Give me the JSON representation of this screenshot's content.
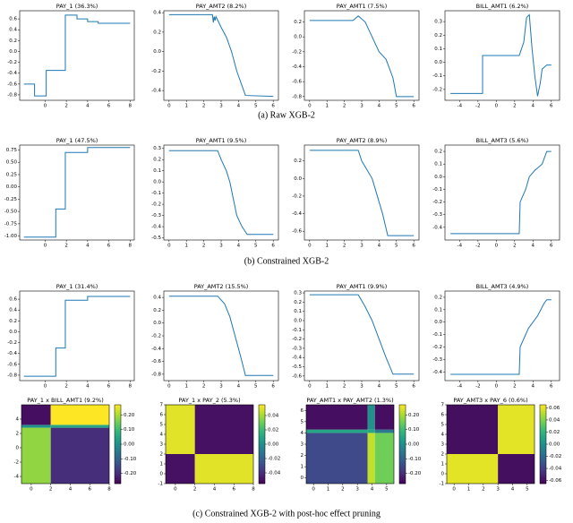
{
  "chart_data": [
    {
      "type": "line",
      "title": "PAY_1 (36.3%)",
      "x": [
        -2,
        -1,
        -1,
        0.1,
        0.1,
        1.9,
        1.9,
        3,
        3,
        4,
        4,
        5,
        5,
        8
      ],
      "values": [
        -0.6,
        -0.6,
        -0.82,
        -0.82,
        -0.35,
        -0.35,
        0.67,
        0.67,
        0.6,
        0.6,
        0.55,
        0.55,
        0.52,
        0.52
      ],
      "xlim": [
        -2.4,
        8.4
      ],
      "ylim": [
        -0.9,
        0.75
      ],
      "xticks": [
        0,
        2,
        4,
        6,
        8
      ],
      "yticks": [
        -0.8,
        -0.6,
        -0.4,
        -0.2,
        {
          "value": 0,
          "label": "0.0"
        },
        0.2,
        0.4,
        0.6
      ],
      "color": "#1f77b4"
    },
    {
      "type": "line",
      "title": "PAY_AMT2 (8.2%)",
      "x": [
        0,
        2.5,
        2.55,
        2.6,
        2.65,
        2.7,
        3,
        3.3,
        3.6,
        3.9,
        4.2,
        4.4,
        6
      ],
      "values": [
        0.38,
        0.38,
        0.3,
        0.36,
        0.32,
        0.36,
        0.25,
        0.15,
        0,
        -0.2,
        -0.35,
        -0.45,
        -0.46
      ],
      "xlim": [
        -0.3,
        6.3
      ],
      "ylim": [
        -0.5,
        0.42
      ],
      "xticks": [
        0,
        1,
        2,
        3,
        4,
        5,
        6
      ],
      "yticks": [
        -0.4,
        -0.2,
        {
          "value": 0,
          "label": "0.0"
        },
        0.2,
        0.4
      ],
      "color": "#1f77b4"
    },
    {
      "type": "line",
      "title": "PAY_AMT1 (7.5%)",
      "x": [
        0,
        2.5,
        2.8,
        3.2,
        3.6,
        4,
        4.4,
        4.8,
        5,
        6
      ],
      "values": [
        0.22,
        0.22,
        0.28,
        0.2,
        0,
        -0.2,
        -0.3,
        -0.55,
        -0.8,
        -0.8
      ],
      "xlim": [
        -0.3,
        6.3
      ],
      "ylim": [
        -0.85,
        0.35
      ],
      "xticks": [
        0,
        1,
        2,
        3,
        4,
        5,
        6
      ],
      "yticks": [
        -0.8,
        -0.6,
        -0.4,
        -0.2,
        {
          "value": 0,
          "label": "0.0"
        },
        0.2
      ],
      "color": "#1f77b4"
    },
    {
      "type": "line",
      "title": "BILL_AMT1 (6.2%)",
      "x": [
        -5,
        -1.5,
        -1.5,
        2.5,
        3,
        3.3,
        3.6,
        3.9,
        4.2,
        4.5,
        4.8,
        5,
        5.5,
        6
      ],
      "values": [
        -0.23,
        -0.23,
        0.05,
        0.05,
        0.15,
        0.33,
        0.35,
        0.1,
        -0.1,
        -0.25,
        -0.15,
        -0.05,
        -0.02,
        -0.02
      ],
      "xlim": [
        -5.6,
        6.9
      ],
      "ylim": [
        -0.28,
        0.38
      ],
      "xticks": [
        -4,
        -2,
        0,
        2,
        4,
        6
      ],
      "yticks": [
        -0.2,
        -0.1,
        {
          "value": 0,
          "label": "0.0"
        },
        0.1,
        0.2,
        0.3
      ],
      "color": "#1f77b4"
    },
    {
      "type": "line",
      "title": "PAY_1 (47.5%)",
      "x": [
        -2,
        1,
        1,
        1.9,
        1.9,
        4,
        4,
        8
      ],
      "values": [
        -1.02,
        -1.02,
        -0.45,
        -0.45,
        0.7,
        0.7,
        0.8,
        0.8
      ],
      "xlim": [
        -2.4,
        8.4
      ],
      "ylim": [
        -1.08,
        0.85
      ],
      "xticks": [
        0,
        2,
        4,
        6,
        8
      ],
      "yticks": [
        {
          "value": -1,
          "label": "-1.00"
        },
        -0.75,
        {
          "value": -0.5,
          "label": "-0.50"
        },
        -0.25,
        {
          "value": 0,
          "label": "0.00"
        },
        0.25,
        {
          "value": 0.5,
          "label": "0.50"
        },
        0.75
      ],
      "color": "#1f77b4"
    },
    {
      "type": "line",
      "title": "PAY_AMT1 (9.5%)",
      "x": [
        0,
        2.8,
        3,
        3.3,
        3.5,
        3.7,
        3.9,
        4.2,
        4.5,
        6
      ],
      "values": [
        0.28,
        0.28,
        0.2,
        0.1,
        0,
        -0.15,
        -0.3,
        -0.4,
        -0.47,
        -0.47
      ],
      "xlim": [
        -0.3,
        6.3
      ],
      "ylim": [
        -0.52,
        0.33
      ],
      "xticks": [
        0,
        1,
        2,
        3,
        4,
        5,
        6
      ],
      "yticks": [
        -0.5,
        -0.4,
        -0.3,
        -0.2,
        -0.1,
        {
          "value": 0,
          "label": "0.0"
        },
        0.1,
        0.2,
        0.3
      ],
      "color": "#1f77b4"
    },
    {
      "type": "line",
      "title": "PAY_AMT2 (8.9%)",
      "x": [
        0,
        2.8,
        3,
        3.3,
        3.6,
        3.9,
        4.2,
        4.5,
        6
      ],
      "values": [
        0.32,
        0.32,
        0.2,
        0.1,
        0,
        -0.2,
        -0.4,
        -0.65,
        -0.65
      ],
      "xlim": [
        -0.3,
        6.3
      ],
      "ylim": [
        -0.7,
        0.38
      ],
      "xticks": [
        0,
        1,
        2,
        3,
        4,
        5,
        6
      ],
      "yticks": [
        -0.6,
        -0.4,
        -0.2,
        {
          "value": 0,
          "label": "0.0"
        },
        0.2
      ],
      "color": "#1f77b4"
    },
    {
      "type": "line",
      "title": "BILL_AMT3 (5.6%)",
      "x": [
        -5,
        2.5,
        2.6,
        3.2,
        3.6,
        4.2,
        5,
        5.5,
        6
      ],
      "values": [
        -0.45,
        -0.45,
        -0.2,
        -0.1,
        0,
        0.05,
        0.1,
        0.2,
        0.2
      ],
      "xlim": [
        -5.6,
        6.9
      ],
      "ylim": [
        -0.5,
        0.25
      ],
      "xticks": [
        -4,
        -2,
        0,
        2,
        4,
        6
      ],
      "yticks": [
        -0.4,
        -0.3,
        -0.2,
        -0.1,
        {
          "value": 0,
          "label": "0.0"
        },
        0.1,
        0.2
      ],
      "color": "#1f77b4"
    },
    {
      "type": "line",
      "title": "PAY_1 (31.4%)",
      "x": [
        -2,
        1,
        1,
        1.9,
        1.9,
        4,
        4,
        8
      ],
      "values": [
        -0.82,
        -0.82,
        -0.3,
        -0.3,
        0.58,
        0.58,
        0.65,
        0.65
      ],
      "xlim": [
        -2.4,
        8.4
      ],
      "ylim": [
        -0.9,
        0.75
      ],
      "xticks": [
        0,
        2,
        4,
        6,
        8
      ],
      "yticks": [
        -0.8,
        -0.6,
        -0.4,
        -0.2,
        {
          "value": 0,
          "label": "0.0"
        },
        0.2,
        0.4,
        0.6
      ],
      "color": "#1f77b4"
    },
    {
      "type": "line",
      "title": "PAY_AMT2 (15.5%)",
      "x": [
        0,
        2.8,
        3.2,
        3.5,
        3.8,
        4.1,
        4.4,
        6
      ],
      "values": [
        0.42,
        0.42,
        0.3,
        0.1,
        -0.2,
        -0.5,
        -0.82,
        -0.82
      ],
      "xlim": [
        -0.3,
        6.3
      ],
      "ylim": [
        -0.9,
        0.5
      ],
      "xticks": [
        0,
        1,
        2,
        3,
        4,
        5,
        6
      ],
      "yticks": [
        -0.8,
        -0.6,
        -0.4,
        -0.2,
        {
          "value": 0,
          "label": "0.0"
        },
        0.2,
        0.4
      ],
      "color": "#1f77b4"
    },
    {
      "type": "line",
      "title": "PAY_AMT1 (9.9%)",
      "x": [
        0,
        2.8,
        3.2,
        3.6,
        4,
        4.4,
        4.8,
        6
      ],
      "values": [
        0.28,
        0.28,
        0.15,
        0,
        -0.2,
        -0.4,
        -0.58,
        -0.58
      ],
      "xlim": [
        -0.3,
        6.3
      ],
      "ylim": [
        -0.65,
        0.32
      ],
      "xticks": [
        0,
        1,
        2,
        3,
        4,
        5,
        6
      ],
      "yticks": [
        -0.6,
        -0.5,
        -0.4,
        -0.3,
        -0.2,
        -0.1,
        {
          "value": 0,
          "label": "0.0"
        },
        0.1,
        0.2,
        0.3
      ],
      "color": "#1f77b4"
    },
    {
      "type": "line",
      "title": "BILL_AMT3 (4.9%)",
      "x": [
        -5,
        2.5,
        2.6,
        3.5,
        4.5,
        5.2,
        5.5,
        6
      ],
      "values": [
        -0.42,
        -0.42,
        -0.2,
        -0.05,
        0.05,
        0.15,
        0.18,
        0.18
      ],
      "xlim": [
        -5.6,
        6.9
      ],
      "ylim": [
        -0.47,
        0.25
      ],
      "xticks": [
        -4,
        -2,
        0,
        2,
        4,
        6
      ],
      "yticks": [
        -0.4,
        -0.3,
        -0.2,
        -0.1,
        {
          "value": 0,
          "label": "0.0"
        },
        0.1,
        0.2
      ],
      "color": "#1f77b4"
    },
    {
      "type": "heatmap",
      "title": "PAY_1 x BILL_AMT1 (9.2%)",
      "xedges": [
        -1,
        2,
        8
      ],
      "yedges": [
        -5,
        2.8,
        3.2,
        6
      ],
      "z": [
        [
          0.18,
          -0.2
        ],
        [
          0,
          0.05
        ],
        [
          -0.25,
          0.27
        ]
      ],
      "xlim": [
        -1,
        8
      ],
      "ylim": [
        -5,
        6
      ],
      "xticks": [
        0,
        2,
        4,
        6,
        8
      ],
      "yticks": [
        -4,
        -2,
        0,
        2,
        4
      ],
      "clim": [
        -0.27,
        0.27
      ],
      "cticks": [
        {
          "value": -0.2,
          "label": "-0.20"
        },
        {
          "value": -0.1,
          "label": "-0.10"
        },
        {
          "value": 0,
          "label": "0.00"
        },
        {
          "value": 0.1,
          "label": "0.10"
        },
        {
          "value": 0.2,
          "label": "0.20"
        }
      ]
    },
    {
      "type": "heatmap",
      "title": "PAY_1 x PAY_2 (5.3%)",
      "xedges": [
        -1,
        2,
        8
      ],
      "yedges": [
        -1,
        2,
        7
      ],
      "z": [
        [
          -0.05,
          0.05
        ],
        [
          0.05,
          -0.05
        ]
      ],
      "xlim": [
        -1,
        8
      ],
      "ylim": [
        -1,
        7
      ],
      "xticks": [
        0,
        2,
        4,
        6,
        8
      ],
      "yticks": [
        -1,
        0,
        1,
        2,
        3,
        4,
        5,
        6,
        7
      ],
      "clim": [
        -0.055,
        0.055
      ],
      "cticks": [
        -0.04,
        -0.02,
        {
          "value": 0,
          "label": "0.00"
        },
        0.02,
        0.04
      ]
    },
    {
      "type": "heatmap",
      "title": "PAY_AMT1 x PAY_AMT2 (1.3%)",
      "xedges": [
        -0.5,
        3.7,
        4.2,
        5.5
      ],
      "yedges": [
        -0.5,
        4,
        4.3,
        6.5
      ],
      "z": [
        [
          -0.15,
          0.22,
          0.15
        ],
        [
          0.05,
          0.05,
          -0.05
        ],
        [
          -0.25,
          0,
          -0.25
        ]
      ],
      "xlim": [
        -0.5,
        5.5
      ],
      "ylim": [
        -0.5,
        6.5
      ],
      "xticks": [
        0,
        1,
        2,
        3,
        4,
        5
      ],
      "yticks": [
        0,
        1,
        2,
        3,
        4,
        5,
        6
      ],
      "clim": [
        -0.27,
        0.27
      ],
      "cticks": [
        {
          "value": -0.2,
          "label": "-0.20"
        },
        {
          "value": -0.1,
          "label": "-0.10"
        },
        {
          "value": 0,
          "label": "0.00"
        },
        {
          "value": 0.1,
          "label": "0.10"
        },
        {
          "value": 0.2,
          "label": "0.20"
        }
      ]
    },
    {
      "type": "heatmap",
      "title": "PAY_AMT3 x PAY_6 (0.6%)",
      "xedges": [
        -0.5,
        3,
        5.5
      ],
      "yedges": [
        -1,
        2,
        7
      ],
      "z": [
        [
          0.06,
          -0.06
        ],
        [
          -0.06,
          0.06
        ]
      ],
      "xlim": [
        -0.5,
        5.5
      ],
      "ylim": [
        -1,
        7
      ],
      "xticks": [
        0,
        1,
        2,
        3,
        4,
        5
      ],
      "yticks": [
        -1,
        0,
        1,
        2,
        3,
        4,
        5,
        6,
        7
      ],
      "clim": [
        -0.065,
        0.065
      ],
      "cticks": [
        -0.06,
        -0.04,
        -0.02,
        {
          "value": 0,
          "label": "0.00"
        },
        0.02,
        0.04,
        0.06
      ]
    }
  ],
  "captions": [
    "(a) Raw XGB-2",
    "(b) Constrained XGB-2",
    "(c) Constrained XGB-2 with post-hoc effect pruning"
  ]
}
